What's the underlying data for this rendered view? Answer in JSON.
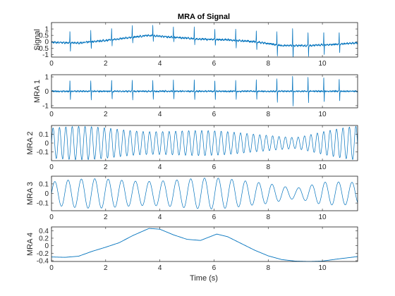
{
  "figure": {
    "title": "MRA of Signal",
    "xlabel": "Time (s)",
    "line_color": "#0072BD"
  },
  "chart_data": [
    {
      "type": "line",
      "ylabel": "Signal",
      "xlim": [
        0,
        11.3
      ],
      "ylim": [
        -1.2,
        1.5
      ],
      "xticks": [
        0,
        2,
        4,
        6,
        8,
        10
      ],
      "yticks": [
        -1,
        -0.5,
        0,
        0.5,
        1
      ],
      "ytick_labels": [
        "-1",
        "-0.5",
        "0",
        "0.5",
        "1"
      ],
      "baseline": [
        [
          0,
          -0.05
        ],
        [
          1,
          -0.1
        ],
        [
          2,
          0.1
        ],
        [
          3,
          0.35
        ],
        [
          3.6,
          0.5
        ],
        [
          4.5,
          0.35
        ],
        [
          5.5,
          0.2
        ],
        [
          6.5,
          0.15
        ],
        [
          7.5,
          0.0
        ],
        [
          8.5,
          -0.3
        ],
        [
          9.5,
          -0.3
        ],
        [
          10.5,
          -0.2
        ],
        [
          11.3,
          -0.1
        ]
      ],
      "spikes": [
        0.68,
        1.45,
        2.22,
        2.98,
        3.74,
        4.5,
        5.27,
        6.03,
        6.8,
        7.56,
        8.32,
        8.9,
        9.47,
        10.05,
        10.62
      ],
      "spike_heights": [
        0.9,
        0.9,
        0.9,
        0.9,
        0.9,
        0.9,
        0.9,
        0.9,
        0.9,
        0.9,
        1.0,
        1.4,
        1.1,
        1.1,
        1.0
      ],
      "spike_depths": [
        -0.7,
        -0.6,
        -0.5,
        -0.4,
        -0.4,
        -0.4,
        -0.5,
        -0.5,
        -0.6,
        -0.7,
        -0.9,
        -1.2,
        -0.9,
        -0.8,
        -0.7
      ]
    },
    {
      "type": "line",
      "ylabel": "MRA 1",
      "xlim": [
        0,
        11.3
      ],
      "ylim": [
        -1.15,
        1.15
      ],
      "xticks": [
        0,
        2,
        4,
        6,
        8,
        10
      ],
      "yticks": [
        -1,
        0,
        1
      ],
      "ytick_labels": [
        "-1",
        "0",
        "1"
      ],
      "spikes": [
        0.68,
        1.45,
        2.22,
        2.98,
        3.74,
        4.5,
        5.27,
        6.03,
        6.8,
        7.56,
        8.32,
        8.9,
        9.47,
        10.05,
        10.62
      ],
      "spike_heights": [
        0.8,
        0.8,
        0.8,
        0.8,
        0.8,
        0.8,
        0.8,
        0.8,
        0.8,
        0.8,
        0.9,
        1.1,
        1.0,
        1.0,
        0.9
      ],
      "spike_depths": [
        -0.6,
        -0.6,
        -0.6,
        -0.6,
        -0.6,
        -0.6,
        -0.6,
        -0.6,
        -0.6,
        -0.6,
        -0.8,
        -1.1,
        -0.8,
        -0.8,
        -0.7
      ]
    },
    {
      "type": "line",
      "ylabel": "MRA 2",
      "xlim": [
        0,
        11.3
      ],
      "ylim": [
        -0.2,
        0.2
      ],
      "xticks": [
        0,
        2,
        4,
        6,
        8,
        10
      ],
      "yticks": [
        -0.1,
        0,
        0.1
      ],
      "ytick_labels": [
        "-0.1",
        "0",
        "0.1"
      ],
      "frequency_hz": 4.2,
      "amplitude_envelope": [
        [
          0,
          0.17
        ],
        [
          2,
          0.16
        ],
        [
          4,
          0.15
        ],
        [
          6,
          0.12
        ],
        [
          8,
          0.1
        ],
        [
          9,
          0.07
        ],
        [
          10,
          0.12
        ],
        [
          11.3,
          0.17
        ]
      ]
    },
    {
      "type": "line",
      "ylabel": "MRA 3",
      "xlim": [
        0,
        11.3
      ],
      "ylim": [
        -0.18,
        0.18
      ],
      "xticks": [
        0,
        2,
        4,
        6,
        8,
        10
      ],
      "yticks": [
        -0.1,
        0,
        0.1
      ],
      "ytick_labels": [
        "-0.1",
        "0",
        "0.1"
      ],
      "frequency_hz": 2.0,
      "amplitude_envelope": [
        [
          0,
          0.12
        ],
        [
          2,
          0.14
        ],
        [
          4,
          0.15
        ],
        [
          6,
          0.14
        ],
        [
          8,
          0.12
        ],
        [
          9,
          0.06
        ],
        [
          10,
          0.11
        ],
        [
          11.3,
          0.1
        ]
      ]
    },
    {
      "type": "line",
      "ylabel": "MRA 4",
      "xlim": [
        0,
        11.3
      ],
      "ylim": [
        -0.42,
        0.5
      ],
      "xticks": [
        0,
        2,
        4,
        6,
        8,
        10
      ],
      "yticks": [
        -0.4,
        -0.2,
        0,
        0.2,
        0.4
      ],
      "ytick_labels": [
        "-0.4",
        "-0.2",
        "0",
        "0.2",
        "0.4"
      ],
      "points": [
        [
          0,
          -0.3
        ],
        [
          0.5,
          -0.31
        ],
        [
          1,
          -0.28
        ],
        [
          1.5,
          -0.15
        ],
        [
          2,
          -0.04
        ],
        [
          2.5,
          0.08
        ],
        [
          3,
          0.27
        ],
        [
          3.6,
          0.46
        ],
        [
          4,
          0.44
        ],
        [
          4.5,
          0.29
        ],
        [
          5,
          0.17
        ],
        [
          5.5,
          0.14
        ],
        [
          6.1,
          0.31
        ],
        [
          6.5,
          0.24
        ],
        [
          7,
          0.06
        ],
        [
          7.5,
          -0.12
        ],
        [
          8,
          -0.27
        ],
        [
          8.5,
          -0.37
        ],
        [
          9,
          -0.41
        ],
        [
          9.5,
          -0.42
        ],
        [
          10,
          -0.41
        ],
        [
          10.5,
          -0.36
        ],
        [
          11.3,
          -0.29
        ]
      ]
    }
  ]
}
